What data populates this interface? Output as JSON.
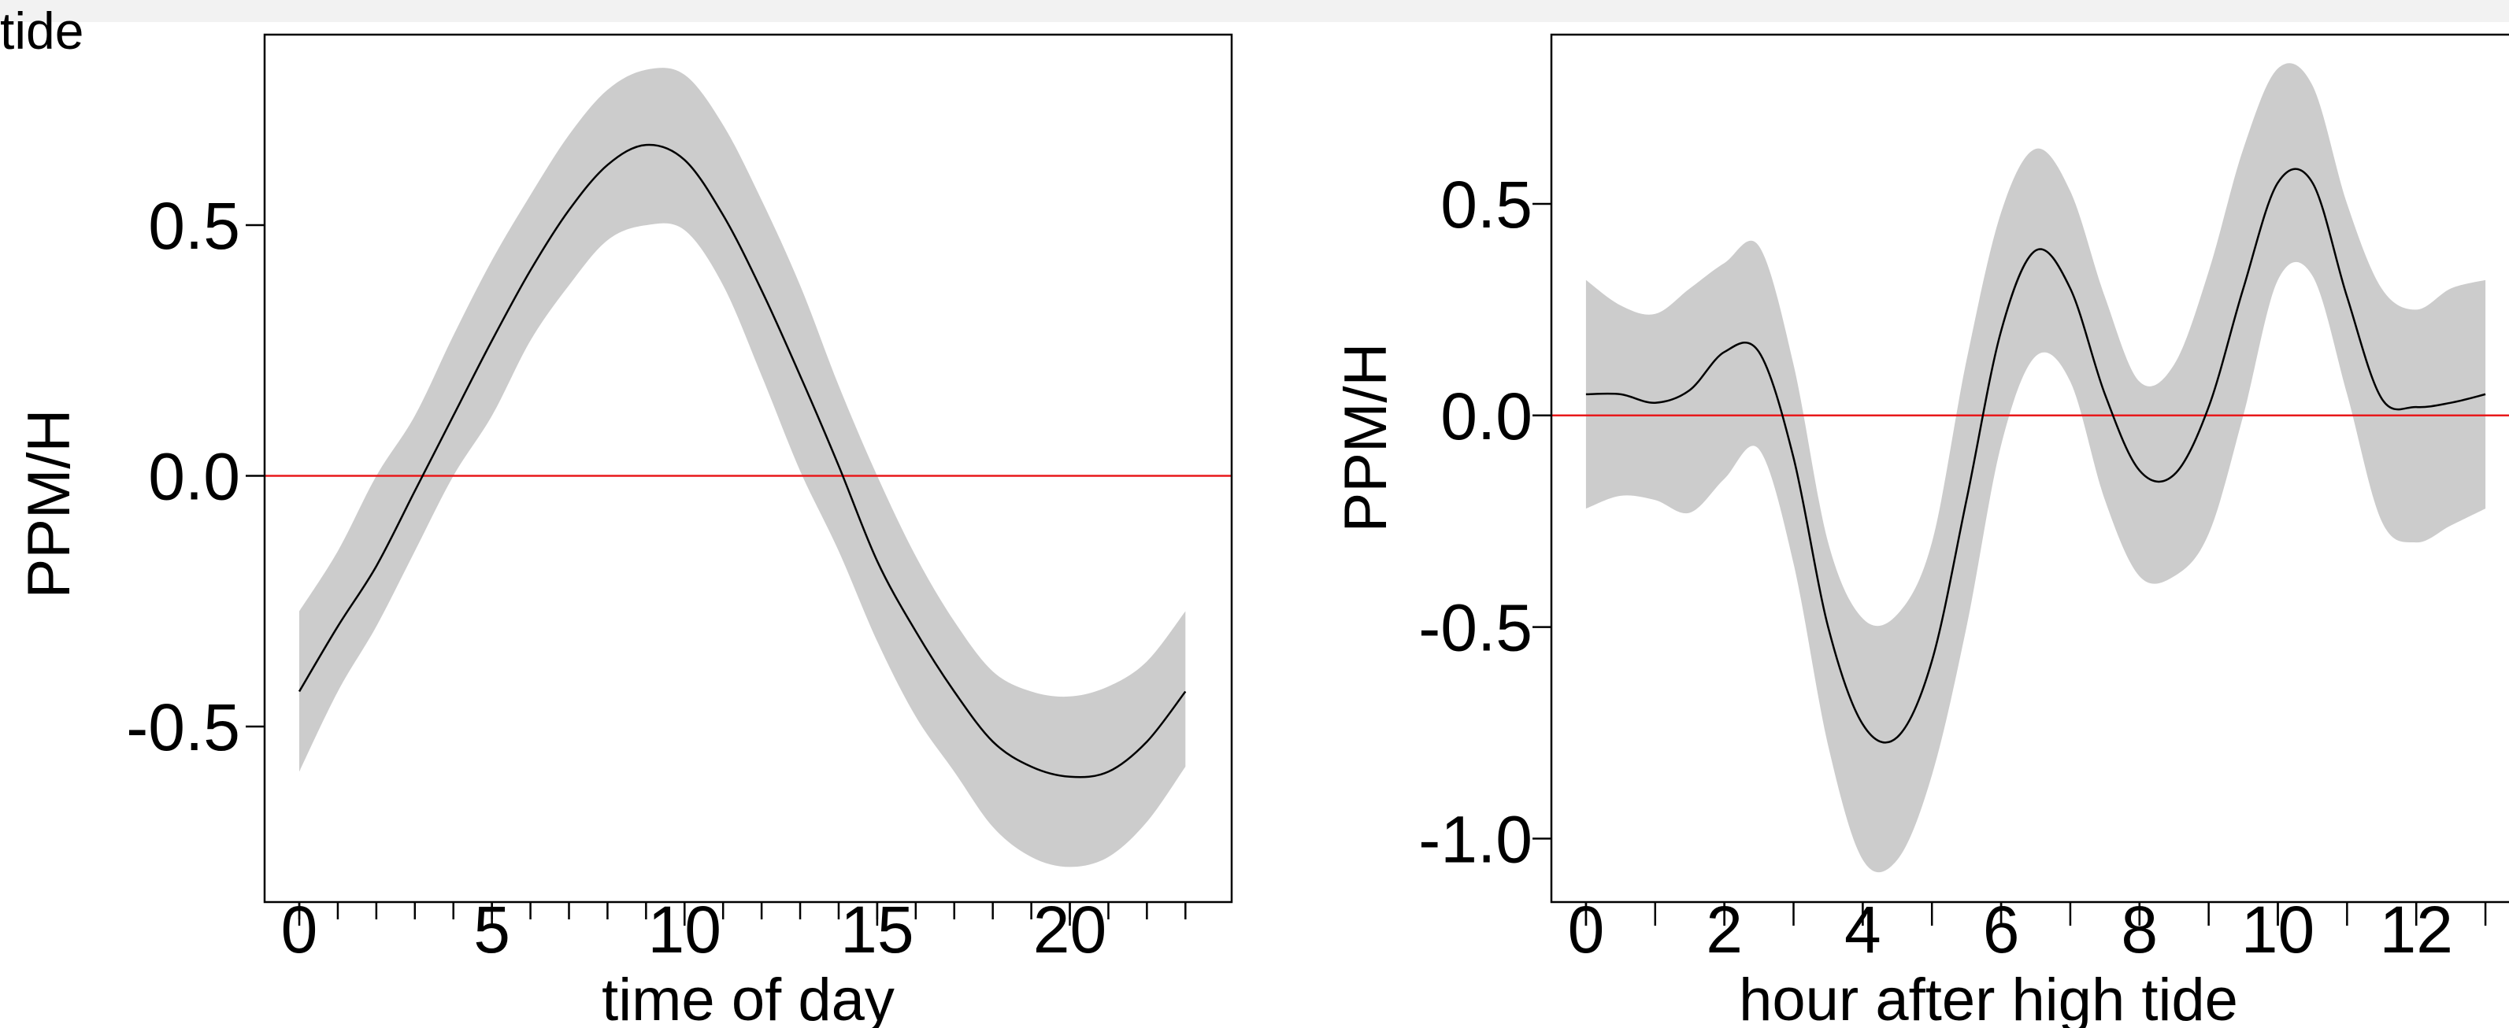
{
  "fragment_text": "tide",
  "colors": {
    "band": "#cccccc",
    "curve": "#000000",
    "zero_line": "#e8191b",
    "frame": "#000000"
  },
  "chart_data": [
    {
      "type": "line",
      "xlabel": "time of day",
      "ylabel": "PPM/H",
      "xlim": [
        -0.9,
        24.2
      ],
      "ylim": [
        -0.85,
        0.88
      ],
      "xticks": [
        0,
        5,
        10,
        15,
        20
      ],
      "minor_xticks": [
        0,
        1,
        2,
        3,
        4,
        5,
        6,
        7,
        8,
        9,
        10,
        11,
        12,
        13,
        14,
        15,
        16,
        17,
        18,
        19,
        20,
        21,
        22,
        23
      ],
      "yticks": [
        -0.5,
        0.0,
        0.5
      ],
      "ytick_labels": [
        "-0.5",
        "0.0",
        "0.5"
      ],
      "zero_line": 0,
      "x": [
        0,
        1,
        2,
        3,
        4,
        5,
        6,
        7,
        8,
        9,
        10,
        11,
        12,
        13,
        14,
        15,
        16,
        17,
        18,
        19,
        20,
        21,
        22,
        23
      ],
      "y": [
        -0.43,
        -0.3,
        -0.18,
        -0.03,
        0.12,
        0.27,
        0.41,
        0.53,
        0.62,
        0.66,
        0.63,
        0.52,
        0.37,
        0.2,
        0.02,
        -0.17,
        -0.31,
        -0.43,
        -0.53,
        -0.58,
        -0.6,
        -0.59,
        -0.53,
        -0.43
      ],
      "upper": [
        -0.27,
        -0.15,
        0.0,
        0.12,
        0.28,
        0.43,
        0.56,
        0.68,
        0.77,
        0.81,
        0.8,
        0.7,
        0.55,
        0.38,
        0.18,
        0.0,
        -0.16,
        -0.29,
        -0.39,
        -0.43,
        -0.44,
        -0.42,
        -0.37,
        -0.27
      ],
      "lower": [
        -0.59,
        -0.43,
        -0.3,
        -0.15,
        0.0,
        0.12,
        0.27,
        0.38,
        0.47,
        0.5,
        0.49,
        0.38,
        0.2,
        0.01,
        -0.15,
        -0.33,
        -0.48,
        -0.59,
        -0.7,
        -0.76,
        -0.78,
        -0.76,
        -0.69,
        -0.58
      ]
    },
    {
      "type": "line",
      "xlabel": "hour after high tide",
      "ylabel": "PPM/H",
      "xlim": [
        -0.5,
        13.5
      ],
      "ylim": [
        -1.15,
        0.9
      ],
      "xticks": [
        0,
        2,
        4,
        6,
        8,
        10,
        12
      ],
      "minor_xticks": [
        0,
        1,
        2,
        3,
        4,
        5,
        6,
        7,
        8,
        9,
        10,
        11,
        12,
        13
      ],
      "yticks": [
        -1.0,
        -0.5,
        0.0,
        0.5
      ],
      "ytick_labels": [
        "-1.0",
        "-0.5",
        "0.0",
        "0.5"
      ],
      "zero_line": 0,
      "x": [
        0,
        0.5,
        1,
        1.5,
        2,
        2.5,
        3,
        3.5,
        4,
        4.5,
        5,
        5.5,
        6,
        6.5,
        7,
        7.5,
        8,
        8.5,
        9,
        9.5,
        10,
        10.5,
        11,
        11.5,
        12,
        12.5,
        13
      ],
      "y": [
        0.05,
        0.05,
        0.03,
        0.06,
        0.15,
        0.15,
        -0.1,
        -0.5,
        -0.73,
        -0.76,
        -0.58,
        -0.2,
        0.2,
        0.39,
        0.3,
        0.05,
        -0.13,
        -0.14,
        0.02,
        0.3,
        0.55,
        0.55,
        0.28,
        0.04,
        0.02,
        0.03,
        0.05
      ],
      "upper": [
        0.32,
        0.26,
        0.24,
        0.3,
        0.36,
        0.4,
        0.12,
        -0.3,
        -0.48,
        -0.47,
        -0.3,
        0.13,
        0.48,
        0.63,
        0.53,
        0.28,
        0.08,
        0.12,
        0.34,
        0.63,
        0.82,
        0.78,
        0.5,
        0.3,
        0.25,
        0.3,
        0.32
      ],
      "lower": [
        -0.22,
        -0.19,
        -0.2,
        -0.23,
        -0.15,
        -0.08,
        -0.35,
        -0.78,
        -1.05,
        -1.05,
        -0.85,
        -0.5,
        -0.07,
        0.14,
        0.08,
        -0.2,
        -0.38,
        -0.38,
        -0.28,
        0.0,
        0.32,
        0.33,
        0.05,
        -0.25,
        -0.3,
        -0.26,
        -0.22
      ]
    }
  ]
}
